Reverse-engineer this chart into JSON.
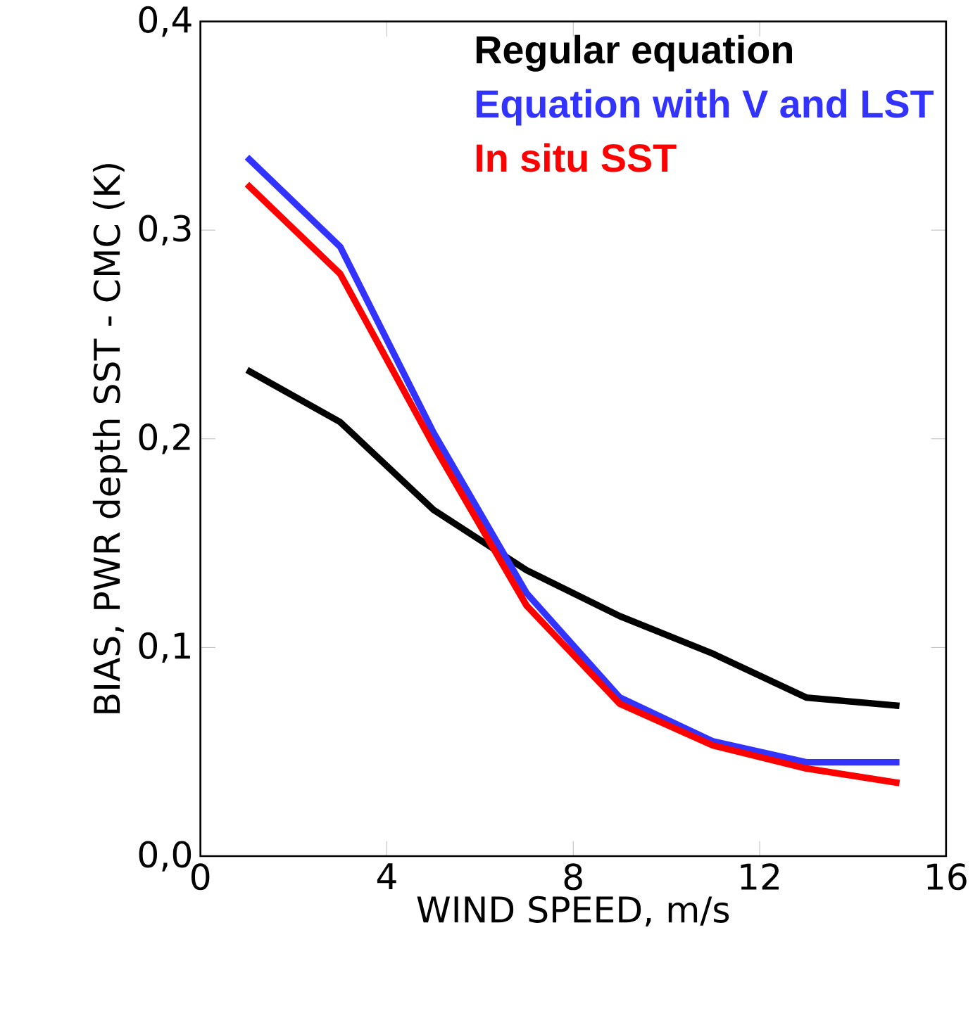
{
  "chart_data": {
    "type": "line",
    "xlabel": "WIND SPEED, m/s",
    "ylabel": "BIAS, PWR depth SST - CMC (K)",
    "x": [
      1,
      3,
      5,
      7,
      9,
      11,
      13,
      15
    ],
    "xlim": [
      0,
      16
    ],
    "xticks": [
      0,
      4,
      8,
      12,
      16
    ],
    "ylim": [
      0,
      0.4
    ],
    "yticks": [
      {
        "value": 0,
        "label": "0,0"
      },
      {
        "value": 0.1,
        "label": "0,1"
      },
      {
        "value": 0.2,
        "label": "0,2"
      },
      {
        "value": 0.3,
        "label": "0,3"
      },
      {
        "value": 0.4,
        "label": "0,4"
      }
    ],
    "legend": "top right",
    "grid": false,
    "marker": "none",
    "line_style": "solid",
    "series": [
      {
        "name": "Regular equation",
        "color": "#000000",
        "values": [
          0.233,
          0.208,
          0.166,
          0.137,
          0.115,
          0.097,
          0.076,
          0.072
        ]
      },
      {
        "name": "Equation with V and LST",
        "color": "#3333ff",
        "values": [
          0.335,
          0.292,
          0.203,
          0.126,
          0.076,
          0.055,
          0.045,
          0.045
        ]
      },
      {
        "name": "In situ SST",
        "color": "#ff0000",
        "values": [
          0.322,
          0.279,
          0.197,
          0.12,
          0.073,
          0.053,
          0.042,
          0.035
        ]
      }
    ]
  }
}
